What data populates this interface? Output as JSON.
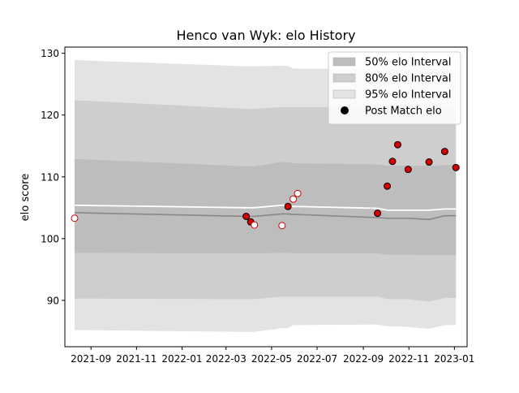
{
  "chart_data": {
    "type": "line",
    "title": "Henco van Wyk: elo History",
    "xlabel": "",
    "ylabel": "elo score",
    "xlim": [
      "2021-07-28",
      "2023-01-18"
    ],
    "ylim": [
      82.5,
      131.0
    ],
    "x_ticks": [
      "2021-09",
      "2021-11",
      "2022-01",
      "2022-03",
      "2022-05",
      "2022-07",
      "2022-09",
      "2022-11",
      "2023-01"
    ],
    "y_ticks": [
      90,
      100,
      110,
      120,
      130
    ],
    "legend": {
      "placement": "top-right",
      "entries": [
        "50% elo Interval",
        "80% elo Interval",
        "95% elo Interval",
        "Post Match elo"
      ]
    },
    "colors": {
      "band95": "#e3e3e3",
      "band80": "#cecece",
      "band50": "#bdbdbd",
      "median": "#888888",
      "mean": "#ffffff",
      "point_edge": "#cc0000",
      "win_fill": "#d40000",
      "loss_fill": "#ffffff"
    },
    "dates": [
      "2021-08-10",
      "2022-03-28",
      "2022-04-03",
      "2022-04-08",
      "2022-05-15",
      "2022-05-23",
      "2022-05-30",
      "2022-06-05",
      "2022-09-20",
      "2022-10-03",
      "2022-10-10",
      "2022-10-17",
      "2022-10-31",
      "2022-11-28",
      "2022-12-19",
      "2023-01-03"
    ],
    "series": [
      {
        "name": "95% elo Interval lower",
        "values": [
          85.2,
          84.9,
          84.9,
          84.9,
          85.5,
          85.5,
          86.0,
          86.0,
          86.1,
          85.8,
          85.8,
          85.8,
          85.7,
          85.4,
          86.0,
          86.0
        ]
      },
      {
        "name": "95% elo Interval upper",
        "values": [
          128.9,
          127.9,
          127.9,
          127.9,
          128.0,
          128.0,
          127.5,
          127.5,
          127.5,
          127.5,
          127.5,
          127.5,
          127.5,
          127.5,
          127.5,
          127.5
        ]
      },
      {
        "name": "80% elo Interval lower",
        "values": [
          90.3,
          90.2,
          90.2,
          90.2,
          90.6,
          90.6,
          90.6,
          90.6,
          90.6,
          90.2,
          90.2,
          90.2,
          90.2,
          89.8,
          90.4,
          90.4
        ]
      },
      {
        "name": "80% elo Interval upper",
        "values": [
          122.4,
          121.0,
          121.0,
          121.0,
          121.3,
          121.3,
          121.3,
          121.3,
          121.3,
          121.0,
          121.0,
          121.0,
          121.0,
          121.0,
          121.2,
          121.2
        ]
      },
      {
        "name": "50% elo Interval lower",
        "values": [
          97.7,
          97.6,
          97.6,
          97.6,
          97.7,
          97.7,
          97.6,
          97.6,
          97.6,
          97.4,
          97.4,
          97.4,
          97.4,
          97.3,
          97.3,
          97.3
        ]
      },
      {
        "name": "50% elo Interval upper",
        "values": [
          112.9,
          111.7,
          111.7,
          111.7,
          112.4,
          112.4,
          112.2,
          112.2,
          112.0,
          111.8,
          111.8,
          111.8,
          111.8,
          111.8,
          111.9,
          111.9
        ]
      },
      {
        "name": "median",
        "values": [
          104.2,
          103.6,
          103.6,
          103.6,
          104.0,
          104.0,
          103.9,
          103.9,
          103.4,
          103.3,
          103.3,
          103.3,
          103.3,
          103.1,
          103.7,
          103.7
        ]
      },
      {
        "name": "mean",
        "values": [
          105.4,
          105.0,
          105.0,
          105.0,
          105.4,
          105.4,
          105.2,
          105.2,
          104.9,
          104.6,
          104.6,
          104.6,
          104.6,
          104.6,
          104.8,
          104.8
        ]
      }
    ],
    "post_match": {
      "name": "Post Match elo",
      "points": [
        {
          "date": "2021-08-10",
          "value": 103.3,
          "result": "loss"
        },
        {
          "date": "2022-03-28",
          "value": 103.6,
          "result": "win"
        },
        {
          "date": "2022-04-03",
          "value": 102.7,
          "result": "win"
        },
        {
          "date": "2022-04-08",
          "value": 102.2,
          "result": "loss"
        },
        {
          "date": "2022-05-15",
          "value": 102.1,
          "result": "loss"
        },
        {
          "date": "2022-05-23",
          "value": 105.2,
          "result": "win"
        },
        {
          "date": "2022-05-30",
          "value": 106.4,
          "result": "loss"
        },
        {
          "date": "2022-06-05",
          "value": 107.3,
          "result": "loss"
        },
        {
          "date": "2022-09-20",
          "value": 104.1,
          "result": "win"
        },
        {
          "date": "2022-10-03",
          "value": 108.5,
          "result": "win"
        },
        {
          "date": "2022-10-10",
          "value": 112.5,
          "result": "win"
        },
        {
          "date": "2022-10-17",
          "value": 115.2,
          "result": "win"
        },
        {
          "date": "2022-10-31",
          "value": 111.2,
          "result": "win"
        },
        {
          "date": "2022-11-28",
          "value": 112.4,
          "result": "win"
        },
        {
          "date": "2022-12-19",
          "value": 114.1,
          "result": "win"
        },
        {
          "date": "2023-01-03",
          "value": 111.5,
          "result": "win"
        }
      ]
    }
  }
}
